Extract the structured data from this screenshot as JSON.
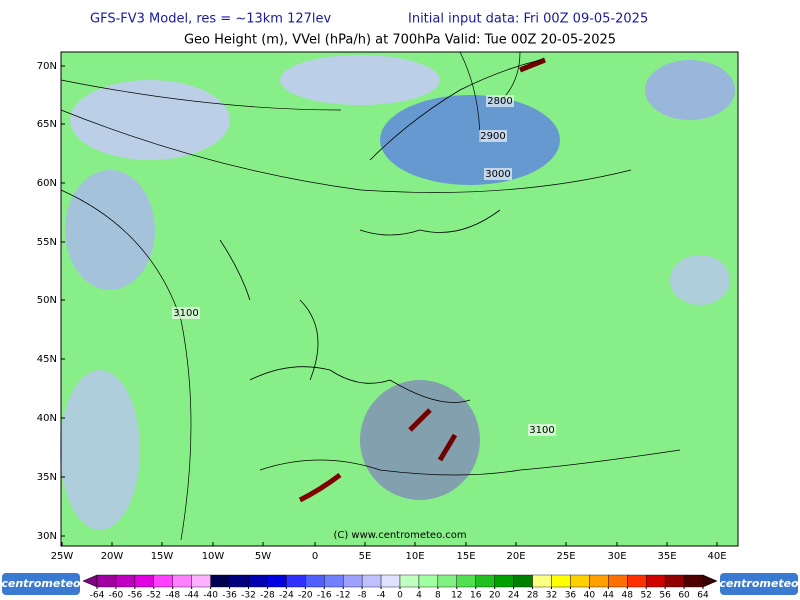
{
  "header": {
    "model": "GFS-FV3 Model, res = ~13km 127lev",
    "init": "Initial input data: Fri 00Z 09-05-2025",
    "subtitle": "Geo Height (m), VVel (hPa/h) at 700hPa  Valid: Tue 00Z 20-05-2025"
  },
  "map": {
    "lat_labels": [
      "70N",
      "65N",
      "60N",
      "55N",
      "50N",
      "45N",
      "40N",
      "35N",
      "30N"
    ],
    "lon_labels": [
      "25W",
      "20W",
      "15W",
      "10W",
      "5W",
      "0",
      "5E",
      "10E",
      "15E",
      "20E",
      "25E",
      "30E",
      "35E",
      "40E"
    ],
    "contour_labels": [
      "2800",
      "2900",
      "3000",
      "3100",
      "3100"
    ],
    "copyright": "(C) www.centrometeo.com"
  },
  "colorbar": {
    "ticks": [
      -64,
      -60,
      -56,
      -52,
      -48,
      -44,
      -40,
      -36,
      -32,
      -28,
      -24,
      -20,
      -16,
      -12,
      -8,
      -4,
      0,
      4,
      8,
      12,
      16,
      20,
      24,
      28,
      32,
      36,
      40,
      44,
      48,
      52,
      56,
      60,
      64
    ],
    "colors": [
      "#a000a0",
      "#c000c0",
      "#e000e0",
      "#ff40ff",
      "#ff80ff",
      "#ffb0ff",
      "#000050",
      "#000080",
      "#0000b0",
      "#0000e0",
      "#3030ff",
      "#5060ff",
      "#7080ff",
      "#a0a0ff",
      "#c0c0ff",
      "#e0e0ff",
      "#c0ffc0",
      "#a0ffa0",
      "#80f080",
      "#50e050",
      "#20c020",
      "#00a000",
      "#008000",
      "#ffff80",
      "#ffff00",
      "#ffd000",
      "#ffa000",
      "#ff7000",
      "#ff3000",
      "#d00000",
      "#900000",
      "#500000"
    ],
    "under_color": "#800080",
    "over_color": "#3a0000"
  },
  "logos": [
    "centrometeo",
    "centrometeo"
  ]
}
